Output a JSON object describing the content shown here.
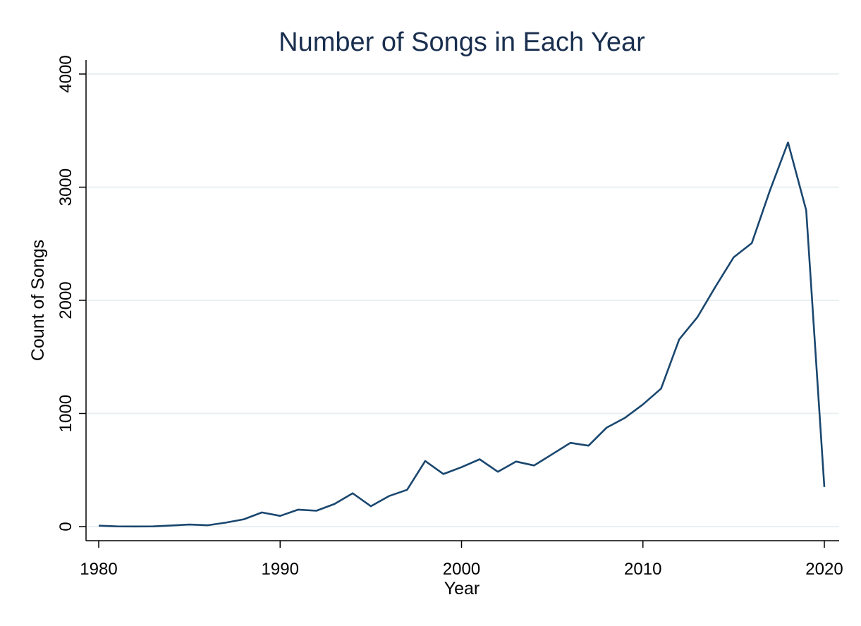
{
  "chart_data": {
    "type": "line",
    "title": "Number of Songs in Each Year",
    "xlabel": "Year",
    "ylabel": "Count of Songs",
    "xlim": [
      1980,
      2020
    ],
    "ylim": [
      0,
      4000
    ],
    "x_ticks": [
      "1980",
      "1990",
      "2000",
      "2010",
      "2020"
    ],
    "y_ticks": [
      "0",
      "1000",
      "2000",
      "3000",
      "4000"
    ],
    "grid": true,
    "x": [
      1980,
      1981,
      1982,
      1983,
      1984,
      1985,
      1986,
      1987,
      1988,
      1989,
      1990,
      1991,
      1992,
      1993,
      1994,
      1995,
      1996,
      1997,
      1998,
      1999,
      2000,
      2001,
      2002,
      2003,
      2004,
      2005,
      2006,
      2007,
      2008,
      2009,
      2010,
      2011,
      2012,
      2013,
      2014,
      2015,
      2016,
      2017,
      2018,
      2019,
      2020
    ],
    "series": [
      {
        "values": [
          8,
          2,
          1,
          2,
          10,
          18,
          12,
          35,
          65,
          125,
          95,
          150,
          140,
          200,
          295,
          180,
          270,
          325,
          580,
          465,
          525,
          595,
          485,
          575,
          540,
          640,
          740,
          715,
          875,
          960,
          1080,
          1220,
          1655,
          1850,
          2120,
          2380,
          2505,
          2970,
          3395,
          2795,
          350
        ],
        "color": "#1a476f"
      }
    ]
  }
}
